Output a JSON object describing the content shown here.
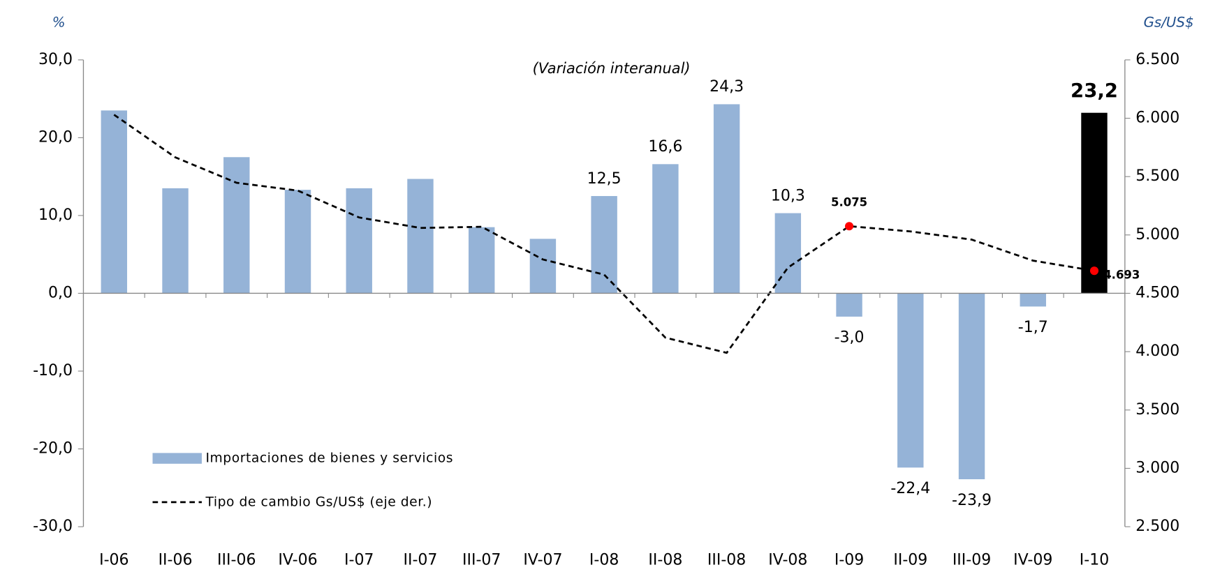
{
  "chart_data": {
    "type": "bar_line",
    "subtitle": "(Variación interanual)",
    "y_label": "%",
    "y2_label": "Gs/US$",
    "categories": [
      "I-06",
      "II-06",
      "III-06",
      "IV-06",
      "I-07",
      "II-07",
      "III-07",
      "IV-07",
      "I-08",
      "II-08",
      "III-08",
      "IV-08",
      "I-09",
      "II-09",
      "III-09",
      "IV-09",
      "I-10"
    ],
    "ylim": [
      -30,
      30
    ],
    "yticks": [
      {
        "value": -30,
        "label": "-30,0"
      },
      {
        "value": -20,
        "label": "-20,0"
      },
      {
        "value": -10,
        "label": "-10,0"
      },
      {
        "value": 0,
        "label": "0,0"
      },
      {
        "value": 10,
        "label": "10,0"
      },
      {
        "value": 20,
        "label": "20,0"
      },
      {
        "value": 30,
        "label": "30,0"
      }
    ],
    "y2lim": [
      2500,
      6500
    ],
    "y2ticks": [
      {
        "value": 2500,
        "label": "2.500"
      },
      {
        "value": 3000,
        "label": "3.000"
      },
      {
        "value": 3500,
        "label": "3.500"
      },
      {
        "value": 4000,
        "label": "4.000"
      },
      {
        "value": 4500,
        "label": "4.500"
      },
      {
        "value": 5000,
        "label": "5.000"
      },
      {
        "value": 5500,
        "label": "5.500"
      },
      {
        "value": 6000,
        "label": "6.000"
      },
      {
        "value": 6500,
        "label": "6.500"
      }
    ],
    "series": [
      {
        "name": "Importaciones de bienes y servicios",
        "type": "bar",
        "color": "#95b3d7",
        "colors": [
          "#95b3d7",
          "#95b3d7",
          "#95b3d7",
          "#95b3d7",
          "#95b3d7",
          "#95b3d7",
          "#95b3d7",
          "#95b3d7",
          "#95b3d7",
          "#95b3d7",
          "#95b3d7",
          "#95b3d7",
          "#95b3d7",
          "#95b3d7",
          "#95b3d7",
          "#95b3d7",
          "#000000"
        ],
        "values": [
          23.5,
          13.5,
          17.5,
          13.3,
          13.5,
          14.7,
          8.5,
          7.0,
          12.5,
          16.6,
          24.3,
          10.3,
          -3.0,
          -22.4,
          -23.9,
          -1.7,
          23.2
        ],
        "value_labels": [
          null,
          null,
          null,
          null,
          null,
          null,
          null,
          null,
          "12,5",
          "16,6",
          "24,3",
          "10,3",
          "-3,0",
          "-22,4",
          "-23,9",
          "-1,7",
          "23,2"
        ],
        "label_colors": [
          null,
          null,
          null,
          null,
          null,
          null,
          null,
          null,
          "#000000",
          "#000000",
          "#000000",
          "#000000",
          "#000000",
          "#000000",
          "#000000",
          "#000000",
          "#ff0000"
        ]
      },
      {
        "name": "Tipo de cambio Gs/US$ (eje der.)",
        "type": "line",
        "axis": "y2",
        "color": "#000000",
        "marker_color": "#ff0000",
        "values": [
          6030,
          5665,
          5447,
          5380,
          5150,
          5060,
          5070,
          4790,
          4660,
          4120,
          3990,
          4720,
          5075,
          5030,
          4960,
          4780,
          4693
        ],
        "value_labels": [
          null,
          null,
          null,
          null,
          null,
          null,
          null,
          null,
          null,
          null,
          null,
          null,
          "5.075",
          null,
          null,
          null,
          "4.693"
        ]
      }
    ]
  }
}
